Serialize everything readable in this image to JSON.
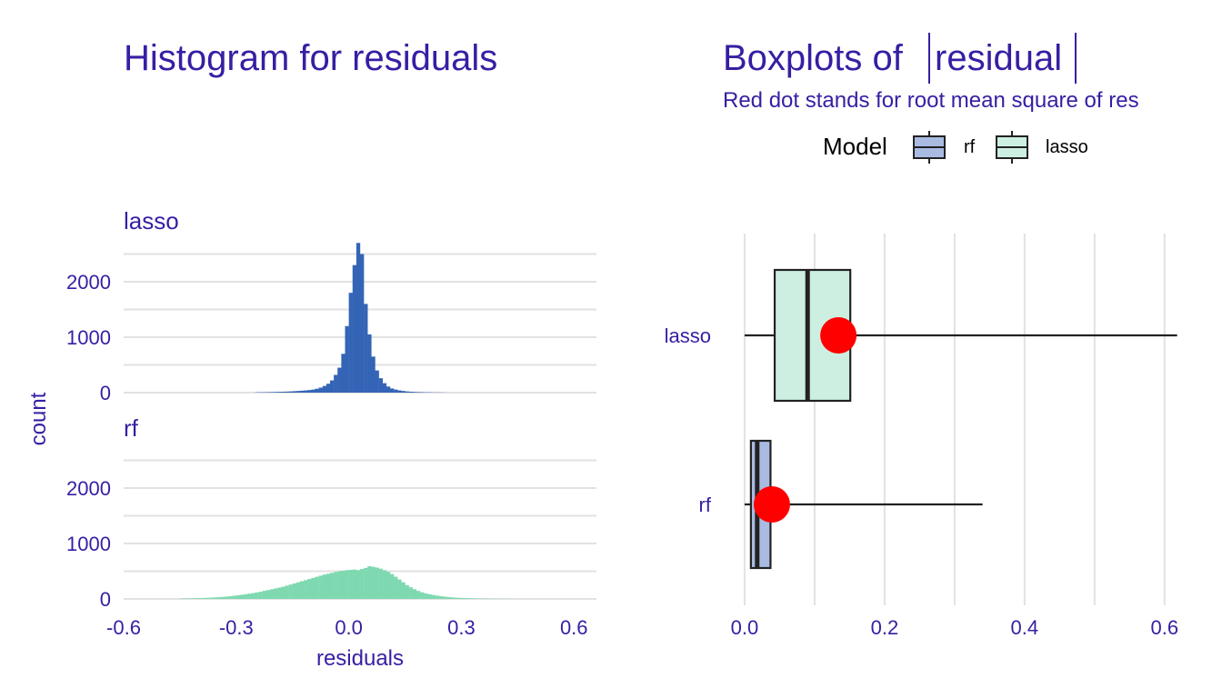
{
  "colors": {
    "text": "#371EA3",
    "grid": "#E2E2E2",
    "lasso_bar": "#3464B5",
    "rf_bar": "#7FD9B0",
    "rf_box": "#AABBE1",
    "lasso_box": "#CCEFE1",
    "box_line": "#222222",
    "rms_dot": "#FF0000"
  },
  "chart_data": [
    {
      "type": "bar",
      "title": "Histogram for residuals",
      "xlabel": "residuals",
      "ylabel": "count",
      "xlim": [
        -0.6,
        0.66
      ],
      "ylim": [
        0,
        2700
      ],
      "x_ticks": [
        -0.6,
        -0.3,
        0.0,
        0.3,
        0.6
      ],
      "x_tick_labels": [
        "-0.6",
        "-0.3",
        "0.0",
        "0.3",
        "0.6"
      ],
      "y_ticks": [
        0,
        1000,
        2000
      ],
      "y_tick_labels": [
        "0",
        "1000",
        "2000"
      ],
      "bin_width": 0.01,
      "facets": [
        {
          "label": "lasso",
          "color_key": "lasso_bar",
          "bins": [
            [
              -0.25,
              5
            ],
            [
              -0.24,
              6
            ],
            [
              -0.23,
              7
            ],
            [
              -0.22,
              8
            ],
            [
              -0.21,
              10
            ],
            [
              -0.2,
              12
            ],
            [
              -0.19,
              14
            ],
            [
              -0.18,
              16
            ],
            [
              -0.17,
              19
            ],
            [
              -0.16,
              22
            ],
            [
              -0.15,
              26
            ],
            [
              -0.14,
              30
            ],
            [
              -0.13,
              35
            ],
            [
              -0.12,
              40
            ],
            [
              -0.11,
              46
            ],
            [
              -0.1,
              55
            ],
            [
              -0.09,
              70
            ],
            [
              -0.08,
              90
            ],
            [
              -0.07,
              120
            ],
            [
              -0.06,
              160
            ],
            [
              -0.05,
              220
            ],
            [
              -0.04,
              320
            ],
            [
              -0.03,
              450
            ],
            [
              -0.02,
              700
            ],
            [
              -0.01,
              1200
            ],
            [
              0.0,
              1800
            ],
            [
              0.01,
              2300
            ],
            [
              0.02,
              2700
            ],
            [
              0.03,
              2500
            ],
            [
              0.04,
              1600
            ],
            [
              0.05,
              1050
            ],
            [
              0.06,
              650
            ],
            [
              0.07,
              400
            ],
            [
              0.08,
              260
            ],
            [
              0.09,
              170
            ],
            [
              0.1,
              110
            ],
            [
              0.11,
              75
            ],
            [
              0.12,
              55
            ],
            [
              0.13,
              40
            ],
            [
              0.14,
              30
            ],
            [
              0.15,
              22
            ],
            [
              0.16,
              17
            ],
            [
              0.17,
              13
            ],
            [
              0.18,
              10
            ],
            [
              0.19,
              8
            ],
            [
              0.2,
              6
            ],
            [
              0.21,
              5
            ],
            [
              0.22,
              4
            ],
            [
              0.23,
              3
            ],
            [
              0.24,
              3
            ],
            [
              0.25,
              2
            ]
          ]
        },
        {
          "label": "rf",
          "color_key": "rf_bar",
          "bins": [
            [
              -0.45,
              8
            ],
            [
              -0.44,
              9
            ],
            [
              -0.43,
              10
            ],
            [
              -0.42,
              12
            ],
            [
              -0.41,
              14
            ],
            [
              -0.4,
              16
            ],
            [
              -0.39,
              18
            ],
            [
              -0.38,
              21
            ],
            [
              -0.37,
              24
            ],
            [
              -0.36,
              28
            ],
            [
              -0.35,
              32
            ],
            [
              -0.34,
              37
            ],
            [
              -0.33,
              43
            ],
            [
              -0.32,
              50
            ],
            [
              -0.31,
              58
            ],
            [
              -0.3,
              66
            ],
            [
              -0.29,
              75
            ],
            [
              -0.28,
              85
            ],
            [
              -0.27,
              95
            ],
            [
              -0.26,
              105
            ],
            [
              -0.25,
              118
            ],
            [
              -0.24,
              130
            ],
            [
              -0.23,
              145
            ],
            [
              -0.22,
              160
            ],
            [
              -0.21,
              175
            ],
            [
              -0.2,
              190
            ],
            [
              -0.19,
              205
            ],
            [
              -0.18,
              220
            ],
            [
              -0.17,
              240
            ],
            [
              -0.16,
              260
            ],
            [
              -0.15,
              280
            ],
            [
              -0.14,
              300
            ],
            [
              -0.13,
              320
            ],
            [
              -0.12,
              340
            ],
            [
              -0.11,
              360
            ],
            [
              -0.1,
              380
            ],
            [
              -0.09,
              400
            ],
            [
              -0.08,
              420
            ],
            [
              -0.07,
              440
            ],
            [
              -0.06,
              455
            ],
            [
              -0.05,
              470
            ],
            [
              -0.04,
              485
            ],
            [
              -0.03,
              500
            ],
            [
              -0.02,
              510
            ],
            [
              -0.01,
              520
            ],
            [
              0.0,
              525
            ],
            [
              0.01,
              530
            ],
            [
              0.02,
              520
            ],
            [
              0.03,
              540
            ],
            [
              0.04,
              560
            ],
            [
              0.05,
              590
            ],
            [
              0.06,
              580
            ],
            [
              0.07,
              565
            ],
            [
              0.08,
              545
            ],
            [
              0.09,
              520
            ],
            [
              0.1,
              490
            ],
            [
              0.11,
              450
            ],
            [
              0.12,
              400
            ],
            [
              0.13,
              350
            ],
            [
              0.14,
              300
            ],
            [
              0.15,
              250
            ],
            [
              0.16,
              210
            ],
            [
              0.17,
              175
            ],
            [
              0.18,
              145
            ],
            [
              0.19,
              120
            ],
            [
              0.2,
              100
            ],
            [
              0.21,
              85
            ],
            [
              0.22,
              72
            ],
            [
              0.23,
              60
            ],
            [
              0.24,
              50
            ],
            [
              0.25,
              42
            ],
            [
              0.26,
              35
            ],
            [
              0.27,
              29
            ],
            [
              0.28,
              24
            ],
            [
              0.29,
              20
            ],
            [
              0.3,
              17
            ],
            [
              0.31,
              14
            ],
            [
              0.32,
              12
            ],
            [
              0.33,
              10
            ],
            [
              0.34,
              8
            ],
            [
              0.35,
              7
            ],
            [
              0.36,
              6
            ],
            [
              0.37,
              5
            ],
            [
              0.38,
              4
            ],
            [
              0.39,
              3
            ],
            [
              0.4,
              3
            ],
            [
              0.41,
              2
            ],
            [
              0.42,
              2
            ]
          ]
        }
      ]
    },
    {
      "type": "boxplot",
      "title": "Boxplots of",
      "title_math": "residual",
      "subtitle": "Red dot stands for root mean square of res",
      "legend": {
        "title": "Model",
        "entries": [
          {
            "label": "rf",
            "color_key": "rf_box"
          },
          {
            "label": "lasso",
            "color_key": "lasso_box"
          }
        ]
      },
      "xlim": [
        -0.0285,
        0.66
      ],
      "x_ticks": [
        0.0,
        0.2,
        0.4,
        0.6
      ],
      "x_tick_labels": [
        "0.0",
        "0.2",
        "0.4",
        "0.6"
      ],
      "minor_x_ticks": [
        0.1,
        0.3,
        0.5
      ],
      "categories": [
        "lasso",
        "rf"
      ],
      "boxes": [
        {
          "label": "lasso",
          "color_key": "lasso_box",
          "whisker_low": 0.0,
          "q1": 0.043,
          "median": 0.09,
          "q3": 0.151,
          "whisker_high": 0.618,
          "rms": 0.134
        },
        {
          "label": "rf",
          "color_key": "rf_box",
          "whisker_low": 0.0,
          "q1": 0.009,
          "median": 0.018,
          "q3": 0.037,
          "whisker_high": 0.34,
          "rms": 0.039
        }
      ]
    }
  ]
}
